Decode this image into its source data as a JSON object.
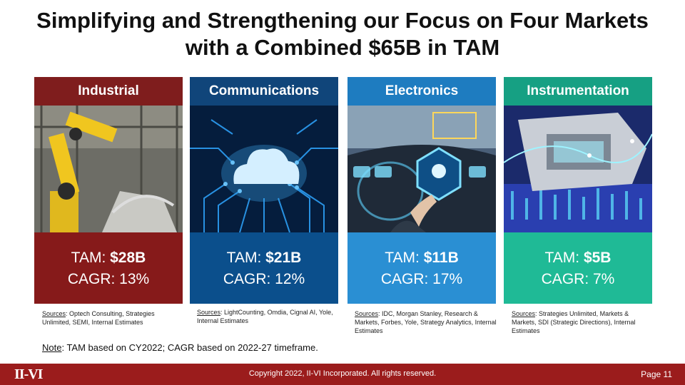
{
  "title": "Simplifying and Strengthening our Focus on Four Markets with a Combined $65B in TAM",
  "cards": [
    {
      "name": "Industrial",
      "tam_label": "TAM:",
      "tam_value": "$28B",
      "cagr": "CAGR: 13%",
      "sources_label": "Sources",
      "sources_text": ": Optech Consulting, Strategies Unlimited, SEMI, Internal Estimates",
      "header_color": "#7f1d1d",
      "body_color": "#861a1a",
      "image_icon": "industrial-robot-image"
    },
    {
      "name": "Communications",
      "tam_label": "TAM:",
      "tam_value": "$21B",
      "cagr": "CAGR: 12%",
      "sources_label": "Sources",
      "sources_text": ": LightCounting, Omdia, Cignal AI, Yole, Internal Estimates",
      "header_color": "#10457a",
      "body_color": "#0b4f8c",
      "image_icon": "cloud-circuit-image"
    },
    {
      "name": "Electronics",
      "tam_label": "TAM:",
      "tam_value": "$11B",
      "cagr": "CAGR: 17%",
      "sources_label": "Sources",
      "sources_text": ": IDC, Morgan Stanley, Research & Markets, Forbes, Yole, Strategy Analytics, Internal Estimates",
      "header_color": "#1e7cc0",
      "body_color": "#2a8fd3",
      "image_icon": "autonomous-car-dashboard-image"
    },
    {
      "name": "Instrumentation",
      "tam_label": "TAM:",
      "tam_value": "$5B",
      "cagr": "CAGR: 7%",
      "sources_label": "Sources",
      "sources_text": ": Strategies Unlimited, Markets & Markets, SDI (Strategic Directions), Internal Estimates",
      "header_color": "#16a083",
      "body_color": "#1fba96",
      "image_icon": "instrument-data-image"
    }
  ],
  "note_label": "Note",
  "note_text": ": TAM based on CY2022; CAGR based on 2022-27 timeframe.",
  "footer": {
    "logo": "II-VI",
    "copyright": "Copyright 2022, II-VI Incorporated. All rights reserved.",
    "page": "Page 11",
    "color": "#9b1c1c"
  }
}
